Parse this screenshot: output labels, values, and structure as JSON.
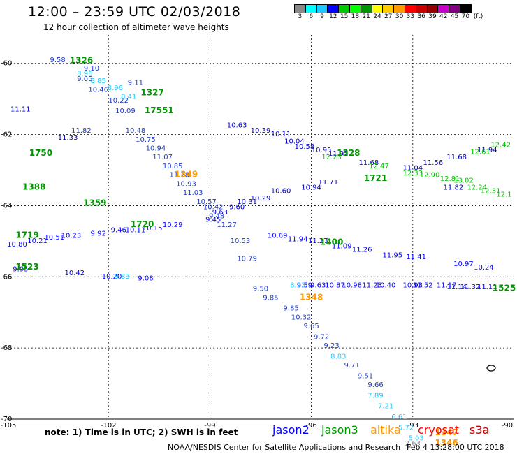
{
  "header": {
    "title": "12:00 – 23:59 UTC 02/03/2018",
    "subtitle": "12 hour collection of altimeter wave heights"
  },
  "color_scale": {
    "unit": "(ft)",
    "labels": [
      "3",
      "6",
      "9",
      "12",
      "15",
      "18",
      "21",
      "24",
      "27",
      "30",
      "33",
      "36",
      "39",
      "42",
      "45",
      "70"
    ],
    "colors": [
      "#888888",
      "#00ffff",
      "#1ec8ff",
      "#0000ff",
      "#00c800",
      "#00ff00",
      "#009600",
      "#ffff00",
      "#ffcc00",
      "#ff9900",
      "#ff0000",
      "#c80000",
      "#960000",
      "#c800c8",
      "#800080",
      "#000000"
    ]
  },
  "map": {
    "x_ticks": [
      "-105",
      "-102",
      "-99",
      "-96",
      "-93",
      "-90"
    ],
    "y_ticks": [
      "-60",
      "-62",
      "-64",
      "-66",
      "-68",
      "-70"
    ],
    "lon_range": [
      -105,
      -90
    ],
    "lat_range": [
      -70,
      -59.2
    ]
  },
  "footer": {
    "note": "note: 1) Time is in UTC; 2) SWH is in feet",
    "satellites": [
      {
        "name": "jason2",
        "color": "#0000ff"
      },
      {
        "name": "jason3",
        "color": "#009600"
      },
      {
        "name": "altika",
        "color": "#ff9900"
      },
      {
        "name": "cryosat",
        "color": "#ff0000"
      },
      {
        "name": "s3a",
        "color": "#c80000"
      }
    ],
    "credit": "NOAA/NESDIS Center for Satellite Applications and Research",
    "generated": "Feb 4 13:28:00 UTC 2018"
  },
  "tracks": [
    {
      "color": "#1e3cc8",
      "pts": [
        [
          "9.58",
          -103.5,
          -59.97
        ],
        [
          "9.10",
          -102.5,
          -60.2
        ],
        [
          "9.05",
          -102.7,
          -60.5
        ],
        [
          "9.11",
          -101.2,
          -60.6
        ],
        [
          "10.46",
          -102.3,
          -60.8
        ],
        [
          "10.22",
          -101.7,
          -61.1
        ],
        [
          "10.09",
          -101.5,
          -61.4
        ],
        [
          "11.82",
          -102.8,
          -61.95
        ],
        [
          "10.48",
          -101.2,
          -61.95
        ],
        [
          "10.75",
          -100.9,
          -62.2
        ],
        [
          "10.94",
          -100.6,
          -62.45
        ],
        [
          "11.07",
          -100.4,
          -62.7
        ],
        [
          "10.85",
          -100.1,
          -62.95
        ],
        [
          "11.28",
          -99.9,
          -63.2
        ],
        [
          "10.93",
          -99.7,
          -63.45
        ],
        [
          "11.03",
          -99.5,
          -63.7
        ],
        [
          "10.57",
          -99.1,
          -63.95
        ],
        [
          "10.42",
          -98.9,
          -64.1
        ],
        [
          "9.48",
          -98.8,
          -64.35
        ],
        [
          "11.27",
          -98.5,
          -64.6
        ],
        [
          "10.53",
          -98.1,
          -65.05
        ],
        [
          "10.79",
          -97.9,
          -65.55
        ],
        [
          "9.50",
          -97.5,
          -66.4
        ],
        [
          "9.85",
          -97.2,
          -66.65
        ],
        [
          "9.85",
          -96.6,
          -66.95
        ],
        [
          "10.32",
          -96.3,
          -67.2
        ],
        [
          "9.65",
          -96.0,
          -67.45
        ],
        [
          "9.72",
          -95.7,
          -67.75
        ],
        [
          "9.23",
          -95.4,
          -68.0
        ],
        [
          "9.71",
          -94.8,
          -68.55
        ],
        [
          "9.51",
          -94.4,
          -68.85
        ],
        [
          "9.66",
          -94.1,
          -69.1
        ]
      ]
    },
    {
      "color": "#0000c8",
      "pts": [
        [
          "11.11",
          -104.6,
          -61.35
        ],
        [
          "11.33",
          -103.2,
          -62.15
        ],
        [
          "10.63",
          -98.2,
          -61.8
        ],
        [
          "10.39",
          -97.5,
          -61.95
        ],
        [
          "10.11",
          -96.9,
          -62.05
        ],
        [
          "10.04",
          -96.5,
          -62.25
        ],
        [
          "10.58",
          -96.2,
          -62.4
        ],
        [
          "10.95",
          -95.7,
          -62.5
        ],
        [
          "11.92",
          -95.2,
          -62.6
        ],
        [
          "11.68",
          -94.3,
          -62.85
        ],
        [
          "11.04",
          -93.0,
          -63.0
        ],
        [
          "11.56",
          -92.4,
          -62.85
        ],
        [
          "11.68",
          -91.7,
          -62.7
        ],
        [
          "11.94",
          -90.8,
          -62.5
        ],
        [
          "11.82",
          -91.8,
          -63.55
        ],
        [
          "11.71",
          -95.5,
          -63.4
        ],
        [
          "10.94",
          -96.0,
          -63.55
        ],
        [
          "10.60",
          -96.9,
          -63.65
        ],
        [
          "10.29",
          -97.5,
          -63.85
        ],
        [
          "10.31",
          -97.9,
          -63.95
        ],
        [
          "9.60",
          -98.2,
          -64.1
        ],
        [
          "9.63",
          -98.7,
          -64.25
        ],
        [
          "9.45",
          -98.9,
          -64.45
        ]
      ]
    },
    {
      "color": "#0000ff",
      "pts": [
        [
          "10.80",
          -104.7,
          -65.15
        ],
        [
          "10.21",
          -104.1,
          -65.05
        ],
        [
          "10.51",
          -103.6,
          -64.95
        ],
        [
          "10.23",
          -103.1,
          -64.9
        ],
        [
          "9.92",
          -102.3,
          -64.85
        ],
        [
          "9.46",
          -101.7,
          -64.75
        ],
        [
          "10.11",
          -101.2,
          -64.75
        ],
        [
          "10.15",
          -100.7,
          -64.7
        ],
        [
          "10.29",
          -100.1,
          -64.6
        ],
        [
          "9.95",
          -104.6,
          -65.85
        ],
        [
          "10.42",
          -103.0,
          -65.95
        ],
        [
          "10.20",
          -101.9,
          -66.05
        ],
        [
          "9.08",
          -100.9,
          -66.1
        ],
        [
          "11.14",
          -91.7,
          -66.35
        ],
        [
          "11.32",
          -91.3,
          -66.35
        ],
        [
          "11.11",
          -90.8,
          -66.35
        ],
        [
          "11.17",
          -92.0,
          -66.3
        ],
        [
          "11.52",
          -92.7,
          -66.3
        ],
        [
          "10.93",
          -93.0,
          -66.3
        ],
        [
          "10.40",
          -93.8,
          -66.3
        ],
        [
          "11.23",
          -94.2,
          -66.3
        ],
        [
          "10.98",
          -94.8,
          -66.3
        ],
        [
          "10.87",
          -95.3,
          -66.3
        ],
        [
          "9.63",
          -95.8,
          -66.3
        ],
        [
          "9.59",
          -96.2,
          -66.3
        ],
        [
          "10.24",
          -90.9,
          -65.8
        ],
        [
          "10.97",
          -91.5,
          -65.7
        ],
        [
          "11.41",
          -92.9,
          -65.5
        ],
        [
          "11.95",
          -93.6,
          -65.45
        ],
        [
          "11.26",
          -94.5,
          -65.3
        ],
        [
          "11.09",
          -95.1,
          -65.2
        ],
        [
          "11.27",
          -95.8,
          -65.05
        ],
        [
          "11.94",
          -96.4,
          -65.0
        ],
        [
          "10.69",
          -97.0,
          -64.9
        ]
      ]
    },
    {
      "color": "#1ec8ff",
      "pts": [
        [
          "8.96",
          -102.7,
          -60.35
        ],
        [
          "8.85",
          -102.3,
          -60.55
        ],
        [
          "8.96",
          -101.8,
          -60.75
        ],
        [
          "8.41",
          -101.4,
          -61.0
        ],
        [
          "8.83",
          -101.6,
          -66.05
        ],
        [
          "8.23",
          -96.4,
          -66.3
        ],
        [
          "8.83",
          -95.2,
          -68.3
        ],
        [
          "7.89",
          -94.1,
          -69.4
        ],
        [
          "7.21",
          -93.8,
          -69.7
        ],
        [
          "6.61",
          -93.4,
          -70.0
        ],
        [
          "5.72",
          -93.2,
          -70.3
        ],
        [
          "5.03",
          -92.9,
          -70.6
        ]
      ]
    },
    {
      "color": "#00c800",
      "pts": [
        [
          "12.23",
          -95.4,
          -62.7
        ],
        [
          "12.47",
          -94.0,
          -62.95
        ],
        [
          "12.33",
          -93.0,
          -63.15
        ],
        [
          "12.90",
          -92.5,
          -63.2
        ],
        [
          "12.81",
          -91.9,
          -63.3
        ],
        [
          "13.02",
          -91.5,
          -63.35
        ],
        [
          "12.24",
          -91.1,
          -63.55
        ],
        [
          "12.31",
          -90.7,
          -63.65
        ],
        [
          "12.1",
          -90.3,
          -63.75
        ],
        [
          "12.61",
          -91.0,
          -62.55
        ],
        [
          "12.42",
          -90.4,
          -62.35
        ]
      ]
    },
    {
      "color": "#009600",
      "pts": [
        [
          "1326",
          -102.8,
          -60.0
        ],
        [
          "1327",
          -100.7,
          -60.9
        ],
        [
          "17551",
          -100.5,
          -61.4
        ],
        [
          "1750",
          -104.0,
          -62.6
        ],
        [
          "1388",
          -104.2,
          -63.55
        ],
        [
          "1359",
          -102.4,
          -64.0
        ],
        [
          "1720",
          -101.0,
          -64.6
        ],
        [
          "1719",
          -104.4,
          -64.9
        ],
        [
          "1523",
          -104.4,
          -65.8
        ],
        [
          "1328",
          -94.9,
          -62.6
        ],
        [
          "1721",
          -94.1,
          -63.3
        ],
        [
          "1400",
          -95.4,
          -65.1
        ],
        [
          "1525",
          -90.3,
          -66.4
        ]
      ]
    },
    {
      "color": "#ff9900",
      "pts": [
        [
          "1349",
          -99.7,
          -63.2
        ],
        [
          "1348",
          -96.0,
          -66.65
        ],
        [
          "1347",
          -92.0,
          -70.45
        ],
        [
          "1346",
          -92.0,
          -70.75
        ]
      ]
    },
    {
      "color": "#888888",
      "pts": [
        [
          "2.63",
          -93.0,
          -70.75
        ]
      ]
    }
  ]
}
